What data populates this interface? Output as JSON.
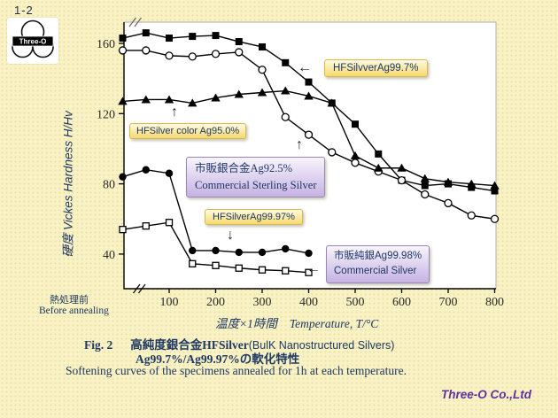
{
  "page": {
    "slide_number": "1-2",
    "logo_text": "Three-O",
    "footer": "Three-O Co.,Ltd"
  },
  "colors": {
    "background": "#F8F2C4",
    "text_navy": "#1F3864",
    "footer_purple": "#6030A0",
    "annotation_yellow": "#F5D96F",
    "annotation_purple": "#C5B2E2",
    "series_color": "#000000"
  },
  "y_axis": {
    "title": "硬度  Vickes Hardness  H/Hv",
    "ticks": [
      40,
      80,
      120,
      160
    ]
  },
  "x_axis": {
    "before_annealing_jp": "熱処理前",
    "before_annealing_en": "Before annealing",
    "title_jp": "温度×1時間",
    "title_en": "Temperature, T/°C",
    "ticks": [
      100,
      200,
      300,
      400,
      500,
      600,
      700,
      800
    ]
  },
  "annotations": {
    "ag95": {
      "text": "HFSilver color Ag95.0%",
      "arrow": "↑"
    },
    "ag99_7": {
      "text": "HFSilvverAg99.7%",
      "arrow": "←"
    },
    "sterling": {
      "line1": "市販銀合金Ag92.5%",
      "line2": "Commercial Sterling Silver",
      "arrow": "↑"
    },
    "ag99_97": {
      "text": "HFSilverAg99.97%",
      "arrow": "↓"
    },
    "commercial": {
      "line1": "市販純銀Ag99.98%",
      "line2": "Commercial Silver",
      "arrow": "←"
    }
  },
  "caption": {
    "fig_label": "Fig. 2",
    "title_jp_bold": "高純度銀合金HFSilver",
    "title_paren": "(BulK Nanostructured Silvers)",
    "subtitle": "Ag99.7%/Ag99.97%の軟化特性",
    "description": "Softening curves of the specimens annealed for 1h at each temperature."
  },
  "chart_data": {
    "type": "line",
    "title": "Softening curves of silver specimens annealed for 1h",
    "xlabel": "温度×1時間  Temperature, T/°C  (leftmost point = 熱処理前 / before annealing, axis break before 100)",
    "ylabel": "硬度 Vickes Hardness H/Hv",
    "x_ticks": [
      100,
      200,
      300,
      400,
      500,
      600,
      700,
      800
    ],
    "y_ticks": [
      40,
      80,
      120,
      160
    ],
    "ylim": [
      20,
      172
    ],
    "grid": false,
    "legend_position": "in-chart callout boxes",
    "series": [
      {
        "name": "HFSilvverAg99.7%",
        "marker": "filled-square",
        "x": [
          "BA",
          50,
          100,
          150,
          200,
          250,
          300,
          350,
          400,
          450,
          500,
          550,
          600,
          650,
          700,
          750,
          800
        ],
        "y": [
          163,
          166,
          163,
          164,
          164.5,
          161,
          158,
          149,
          138,
          126,
          114,
          97,
          82,
          79,
          80,
          78,
          76
        ]
      },
      {
        "name": "市販銀合金Ag92.5% Commercial Sterling Silver",
        "marker": "open-circle",
        "x": [
          "BA",
          50,
          100,
          150,
          200,
          250,
          300,
          350,
          400,
          450,
          500,
          550,
          600,
          650,
          700,
          750,
          800
        ],
        "y": [
          156,
          156,
          153,
          152.5,
          154,
          155,
          145,
          118,
          108,
          98,
          92,
          87,
          82,
          74,
          69,
          62,
          60
        ]
      },
      {
        "name": "HFSilver color Ag95.0%",
        "marker": "filled-triangle",
        "x": [
          "BA",
          50,
          100,
          150,
          200,
          250,
          300,
          350,
          400,
          450,
          500,
          550,
          600,
          650,
          700,
          750,
          800
        ],
        "y": [
          127,
          128,
          128,
          126,
          129,
          131,
          132,
          133,
          130,
          126,
          96,
          89,
          89,
          83,
          81,
          80,
          79
        ]
      },
      {
        "name": "HFSilverAg99.97%",
        "marker": "filled-circle",
        "x": [
          "BA",
          50,
          100,
          150,
          200,
          250,
          300,
          350,
          400
        ],
        "y": [
          84,
          88,
          86,
          42,
          42,
          41,
          41,
          43,
          40.5
        ]
      },
      {
        "name": "市販純銀Ag99.98% Commercial Silver",
        "marker": "open-square",
        "x": [
          "BA",
          50,
          100,
          150,
          200,
          250,
          300,
          350,
          400
        ],
        "y": [
          54,
          56,
          58,
          34.5,
          33.5,
          32,
          31,
          30.5,
          29.5
        ]
      }
    ]
  }
}
